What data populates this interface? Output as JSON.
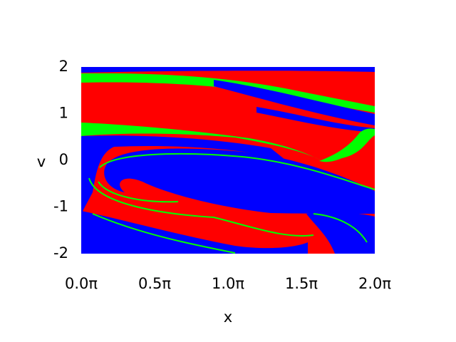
{
  "chart_data": {
    "type": "basin",
    "x_label": "x",
    "y_label": "v",
    "xlim": [
      0,
      2
    ],
    "ylim": [
      -2,
      2
    ],
    "xticks": [
      {
        "value": 0,
        "label": "0.0π"
      },
      {
        "value": 0.5,
        "label": "0.5π"
      },
      {
        "value": 1,
        "label": "1.0π"
      },
      {
        "value": 1.5,
        "label": "1.5π"
      },
      {
        "value": 2,
        "label": "2.0π"
      }
    ],
    "yticks": [
      -2,
      -1,
      0,
      1,
      2
    ],
    "colors": [
      "#ff0000",
      "#0000ff",
      "#00ff00"
    ],
    "grid": false
  }
}
